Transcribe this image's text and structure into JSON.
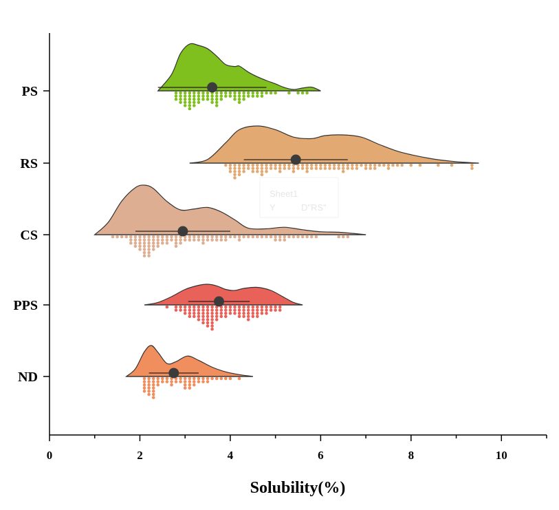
{
  "chart_data": {
    "type": "raincloud",
    "title": "",
    "xlabel": "Solubility(%)",
    "ylabel": "",
    "xlim": [
      0,
      11
    ],
    "xticks": [
      0,
      2,
      4,
      6,
      8,
      10
    ],
    "grid": false,
    "categories": [
      "PS",
      "RS",
      "CS",
      "PPS",
      "ND"
    ],
    "series": [
      {
        "name": "PS",
        "color": "#7fbf1e",
        "mean": 3.6,
        "sd": 1.2,
        "kde_x": [
          2.4,
          2.7,
          2.9,
          3.1,
          3.3,
          3.5,
          3.7,
          3.9,
          4.1,
          4.2,
          4.4,
          4.6,
          4.8,
          5.0,
          5.2,
          5.4,
          5.6,
          5.8,
          6.0
        ],
        "kde_y": [
          0.0,
          0.35,
          0.8,
          1.0,
          0.97,
          0.9,
          0.74,
          0.56,
          0.52,
          0.53,
          0.4,
          0.3,
          0.22,
          0.15,
          0.07,
          0.03,
          0.06,
          0.08,
          0.0
        ],
        "dot_x": [
          2.8,
          2.9,
          3.0,
          3.1,
          3.2,
          3.3,
          3.4,
          3.5,
          3.6,
          3.7,
          3.8,
          3.9,
          4.0,
          4.1,
          4.2,
          4.3,
          4.4,
          4.5,
          4.6,
          4.7,
          4.8,
          4.9,
          5.0,
          5.3,
          5.5,
          5.6,
          5.7
        ],
        "dot_n": [
          3,
          4,
          5,
          6,
          5,
          4,
          3,
          3,
          4,
          5,
          3,
          2,
          2,
          3,
          4,
          3,
          2,
          2,
          2,
          2,
          1,
          1,
          1,
          1,
          1,
          1,
          1
        ]
      },
      {
        "name": "RS",
        "color": "#e2aa72",
        "mean": 5.45,
        "sd": 1.15,
        "kde_x": [
          3.1,
          3.5,
          3.9,
          4.2,
          4.6,
          5.0,
          5.4,
          5.8,
          6.1,
          6.5,
          6.9,
          7.3,
          7.7,
          8.1,
          8.5,
          8.9,
          9.2,
          9.5
        ],
        "kde_y": [
          0.0,
          0.1,
          0.55,
          0.9,
          1.0,
          0.9,
          0.7,
          0.66,
          0.74,
          0.76,
          0.7,
          0.5,
          0.32,
          0.2,
          0.11,
          0.05,
          0.02,
          0.0
        ],
        "dot_x": [
          3.9,
          4.0,
          4.1,
          4.2,
          4.3,
          4.4,
          4.5,
          4.6,
          4.7,
          4.8,
          4.9,
          5.0,
          5.1,
          5.2,
          5.3,
          5.4,
          5.5,
          5.6,
          5.7,
          5.8,
          5.9,
          6.0,
          6.1,
          6.2,
          6.3,
          6.4,
          6.5,
          6.6,
          6.7,
          6.8,
          6.9,
          7.0,
          7.1,
          7.2,
          7.3,
          7.4,
          7.5,
          7.6,
          7.7,
          7.8,
          8.0,
          8.2,
          8.6,
          8.9,
          9.35
        ],
        "dot_n": [
          1,
          3,
          5,
          4,
          3,
          2,
          3,
          3,
          4,
          3,
          2,
          2,
          3,
          2,
          2,
          3,
          2,
          2,
          3,
          2,
          2,
          2,
          2,
          2,
          2,
          2,
          3,
          2,
          2,
          2,
          1,
          2,
          2,
          2,
          1,
          1,
          2,
          1,
          1,
          1,
          1,
          1,
          1,
          1,
          2
        ]
      },
      {
        "name": "CS",
        "color": "#deae92",
        "mean": 2.95,
        "sd": 1.05,
        "kde_x": [
          1.0,
          1.3,
          1.6,
          1.9,
          2.1,
          2.3,
          2.6,
          2.9,
          3.2,
          3.5,
          3.8,
          4.1,
          4.4,
          4.8,
          5.2,
          5.6,
          6.0,
          6.4,
          6.8,
          7.0
        ],
        "kde_y": [
          0.0,
          0.25,
          0.68,
          0.95,
          1.0,
          0.93,
          0.67,
          0.5,
          0.52,
          0.55,
          0.46,
          0.3,
          0.13,
          0.12,
          0.15,
          0.1,
          0.06,
          0.05,
          0.02,
          0.0
        ],
        "dot_x": [
          1.4,
          1.5,
          1.6,
          1.7,
          1.8,
          1.9,
          2.0,
          2.1,
          2.2,
          2.3,
          2.4,
          2.5,
          2.6,
          2.7,
          2.8,
          2.9,
          3.0,
          3.1,
          3.2,
          3.3,
          3.4,
          3.5,
          3.6,
          3.7,
          3.8,
          3.9,
          4.0,
          4.1,
          4.2,
          4.3,
          4.4,
          4.5,
          4.6,
          4.7,
          4.8,
          4.9,
          5.0,
          5.1,
          5.2,
          5.3,
          5.4,
          5.5,
          5.6,
          5.7,
          5.8,
          5.9,
          6.4,
          6.5,
          6.6
        ],
        "dot_n": [
          1,
          1,
          1,
          1,
          3,
          4,
          5,
          7,
          7,
          5,
          4,
          3,
          3,
          2,
          4,
          3,
          2,
          2,
          2,
          2,
          3,
          2,
          2,
          2,
          2,
          2,
          1,
          1,
          2,
          1,
          1,
          1,
          1,
          1,
          1,
          1,
          2,
          2,
          2,
          1,
          1,
          1,
          1,
          1,
          1,
          1,
          1,
          1,
          1
        ]
      },
      {
        "name": "PPS",
        "color": "#e9625a",
        "mean": 3.75,
        "sd": 0.68,
        "kde_x": [
          2.1,
          2.4,
          2.7,
          3.0,
          3.3,
          3.5,
          3.7,
          3.9,
          4.1,
          4.3,
          4.6,
          4.9,
          5.2,
          5.4,
          5.6
        ],
        "kde_y": [
          0.0,
          0.12,
          0.4,
          0.75,
          0.95,
          1.0,
          0.92,
          0.75,
          0.7,
          0.8,
          0.85,
          0.7,
          0.35,
          0.12,
          0.0
        ],
        "dot_x": [
          2.6,
          2.8,
          2.9,
          3.0,
          3.1,
          3.2,
          3.3,
          3.4,
          3.5,
          3.6,
          3.7,
          3.8,
          3.9,
          4.0,
          4.1,
          4.2,
          4.3,
          4.4,
          4.5,
          4.6,
          4.7,
          4.8,
          4.9,
          5.0,
          5.1
        ],
        "dot_n": [
          1,
          2,
          2,
          3,
          4,
          4,
          5,
          6,
          7,
          8,
          5,
          4,
          4,
          3,
          3,
          4,
          4,
          5,
          4,
          4,
          3,
          3,
          2,
          2,
          2
        ]
      },
      {
        "name": "ND",
        "color": "#f08e5e",
        "mean": 2.75,
        "sd": 0.55,
        "kde_x": [
          1.7,
          1.9,
          2.1,
          2.25,
          2.4,
          2.6,
          2.8,
          3.05,
          3.3,
          3.6,
          3.9,
          4.2,
          4.5
        ],
        "kde_y": [
          0.0,
          0.25,
          0.8,
          1.0,
          0.78,
          0.42,
          0.48,
          0.66,
          0.52,
          0.3,
          0.15,
          0.06,
          0.0
        ],
        "dot_x": [
          2.1,
          2.2,
          2.3,
          2.4,
          2.5,
          2.6,
          2.7,
          2.8,
          2.9,
          3.0,
          3.1,
          3.2,
          3.3,
          3.4,
          3.5,
          3.6,
          3.7,
          3.8,
          3.9,
          4.0,
          4.2
        ],
        "dot_n": [
          5,
          6,
          7,
          3,
          2,
          2,
          3,
          2,
          2,
          4,
          4,
          3,
          2,
          2,
          2,
          1,
          1,
          1,
          1,
          1,
          1
        ]
      }
    ],
    "mean_marker_color": "#3b3b3b"
  },
  "watermark": {
    "sheet": "Sheet1",
    "y_label": "Y",
    "col_label": "D\"RS\""
  }
}
